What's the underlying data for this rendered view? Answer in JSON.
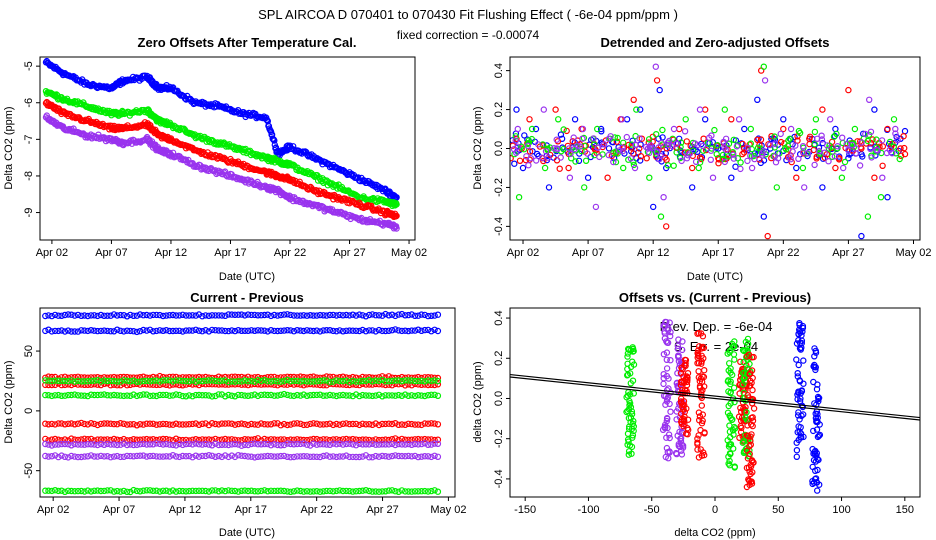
{
  "header": {
    "title": "SPL   AIRCOA D   070401 to 070430   Fit Flushing Effect ( -6e-04 ppm/ppm )",
    "subtitle": "fixed correction = -0.00074"
  },
  "colors": {
    "blue": "#0000ff",
    "red": "#ff0000",
    "green": "#00ee00",
    "purple": "#9933ee",
    "black": "#000000"
  },
  "chart_data": [
    {
      "id": "p1",
      "type": "scatter",
      "title": "Zero Offsets After Temperature Cal.",
      "xlabel": "Date (UTC)",
      "ylabel": "Delta CO2 (ppm)",
      "xlim": [
        0,
        31.5
      ],
      "ylim": [
        -9.75,
        -4.75
      ],
      "xticks": [
        1,
        6,
        11,
        16,
        21,
        26,
        31
      ],
      "xtick_labels": [
        "Apr 02",
        "Apr 07",
        "Apr 12",
        "Apr 17",
        "Apr 22",
        "Apr 27",
        "May 02"
      ],
      "yticks": [
        -9,
        -8,
        -7,
        -6,
        -5
      ],
      "ytick_labels": [
        "-9",
        "-8",
        "-7",
        "-6",
        "-5"
      ],
      "series": [
        {
          "name": "blue",
          "color": "#0000ff",
          "x": [
            0.5,
            2,
            4,
            6,
            7,
            9,
            10,
            11,
            13,
            15,
            17,
            19,
            20,
            21,
            23,
            25,
            27,
            29,
            30
          ],
          "y": [
            -4.9,
            -5.2,
            -5.5,
            -5.6,
            -5.4,
            -5.3,
            -5.6,
            -5.6,
            -6.0,
            -6.1,
            -6.3,
            -6.4,
            -7.4,
            -7.2,
            -7.5,
            -7.8,
            -8.1,
            -8.4,
            -8.6
          ]
        },
        {
          "name": "green",
          "color": "#00ee00",
          "x": [
            0.5,
            2,
            4,
            6,
            7,
            9,
            10,
            11,
            13,
            15,
            17,
            19,
            20,
            21,
            23,
            25,
            27,
            29,
            30
          ],
          "y": [
            -5.7,
            -5.9,
            -6.1,
            -6.3,
            -6.3,
            -6.2,
            -6.5,
            -6.6,
            -6.9,
            -7.1,
            -7.3,
            -7.5,
            -7.6,
            -7.7,
            -8.0,
            -8.3,
            -8.6,
            -8.7,
            -8.8
          ]
        },
        {
          "name": "red",
          "color": "#ff0000",
          "x": [
            0.5,
            2,
            4,
            6,
            7,
            9,
            10,
            11,
            13,
            15,
            17,
            19,
            20,
            21,
            23,
            25,
            27,
            29,
            30
          ],
          "y": [
            -6.0,
            -6.3,
            -6.5,
            -6.7,
            -6.7,
            -6.6,
            -6.9,
            -7.0,
            -7.3,
            -7.5,
            -7.7,
            -7.9,
            -8.0,
            -8.1,
            -8.4,
            -8.6,
            -8.8,
            -9.0,
            -9.1
          ]
        },
        {
          "name": "purple",
          "color": "#9933ee",
          "x": [
            0.5,
            2,
            4,
            6,
            7,
            9,
            10,
            11,
            13,
            15,
            17,
            19,
            20,
            21,
            23,
            25,
            27,
            29,
            30
          ],
          "y": [
            -6.4,
            -6.7,
            -6.9,
            -7.0,
            -7.1,
            -7.0,
            -7.3,
            -7.4,
            -7.7,
            -7.9,
            -8.1,
            -8.3,
            -8.4,
            -8.6,
            -8.8,
            -9.0,
            -9.2,
            -9.3,
            -9.4
          ]
        }
      ]
    },
    {
      "id": "p2",
      "type": "scatter",
      "title": "Detrended and Zero-adjusted Offsets",
      "xlabel": "Date (UTC)",
      "ylabel": "Delta CO2 (ppm)",
      "xlim": [
        0,
        31.5
      ],
      "ylim": [
        -0.47,
        0.47
      ],
      "xticks": [
        1,
        6,
        11,
        16,
        21,
        26,
        31
      ],
      "xtick_labels": [
        "Apr 02",
        "Apr 07",
        "Apr 12",
        "Apr 17",
        "Apr 22",
        "Apr 27",
        "May 02"
      ],
      "yticks": [
        -0.4,
        -0.2,
        0.0,
        0.2,
        0.4
      ],
      "ytick_labels": [
        "-0.4",
        "-0.2",
        "0.0",
        "0.2",
        "0.4"
      ],
      "series": [
        {
          "name": "blue",
          "color": "#0000ff",
          "x": [
            0.5,
            1,
            2,
            3,
            4,
            5,
            6,
            7,
            8,
            9,
            10,
            11,
            11.5,
            12,
            13,
            14,
            15,
            16,
            17,
            18,
            19,
            19.5,
            20,
            21,
            22,
            23,
            24,
            25,
            26,
            27,
            28,
            29,
            30
          ],
          "y": [
            0.2,
            -0.1,
            0.1,
            -0.2,
            0.05,
            0.15,
            -0.15,
            0.1,
            -0.05,
            0.15,
            0.2,
            -0.3,
            0.3,
            -0.1,
            0.05,
            -0.2,
            0.15,
            0.0,
            -0.15,
            0.1,
            0.25,
            -0.35,
            0.0,
            0.15,
            -0.1,
            0.05,
            -0.2,
            0.1,
            -0.05,
            -0.45,
            0.2,
            -0.25,
            0.05
          ]
        },
        {
          "name": "red",
          "color": "#ff0000",
          "x": [
            0.5,
            1.5,
            2.5,
            3.5,
            4.5,
            5.5,
            6.5,
            7.5,
            8.5,
            9.5,
            10.5,
            11.3,
            12,
            13,
            14,
            15,
            16,
            17,
            18,
            19.3,
            19.8,
            21,
            22,
            23,
            24,
            25,
            26,
            27,
            28,
            29,
            30
          ],
          "y": [
            0.05,
            0.15,
            -0.05,
            0.2,
            -0.1,
            0.1,
            0.0,
            -0.15,
            0.15,
            0.25,
            -0.05,
            0.35,
            -0.4,
            0.1,
            -0.1,
            0.2,
            -0.05,
            0.15,
            0.0,
            0.4,
            -0.45,
            0.1,
            -0.15,
            0.05,
            0.2,
            -0.1,
            0.3,
            0.0,
            -0.15,
            0.1,
            0.0
          ]
        },
        {
          "name": "green",
          "color": "#00ee00",
          "x": [
            0.7,
            1.7,
            2.7,
            3.7,
            4.7,
            5.7,
            6.7,
            7.7,
            8.7,
            9.7,
            10.7,
            11.6,
            12.5,
            13.5,
            14.5,
            15.5,
            16.5,
            17.5,
            18.5,
            19.5,
            20.5,
            21.5,
            22.5,
            23.5,
            24.5,
            25.5,
            26.5,
            27.5,
            28.5,
            29.5
          ],
          "y": [
            -0.25,
            0.1,
            -0.1,
            0.15,
            -0.05,
            -0.2,
            0.1,
            0.05,
            -0.1,
            0.2,
            -0.15,
            -0.35,
            0.05,
            0.15,
            -0.1,
            0.0,
            0.2,
            -0.05,
            0.1,
            0.42,
            -0.2,
            0.05,
            -0.1,
            0.15,
            0.0,
            -0.15,
            0.1,
            -0.35,
            -0.25,
            0.15
          ]
        },
        {
          "name": "purple",
          "color": "#9933ee",
          "x": [
            0.6,
            1.6,
            2.6,
            3.6,
            4.6,
            5.6,
            6.6,
            7.6,
            8.6,
            9.6,
            10.6,
            11.2,
            11.8,
            12.6,
            13.6,
            14.6,
            15.6,
            16.6,
            17.6,
            18.6,
            19.6,
            20.6,
            21.6,
            22.6,
            23.6,
            24.6,
            25.6,
            26.6,
            27.6,
            28.6,
            29.6
          ],
          "y": [
            0.1,
            -0.05,
            0.2,
            0.0,
            -0.15,
            0.1,
            -0.3,
            0.05,
            0.15,
            -0.1,
            0.0,
            0.42,
            -0.25,
            0.1,
            -0.05,
            0.2,
            -0.15,
            0.05,
            0.15,
            -0.1,
            0.35,
            -0.05,
            0.1,
            -0.2,
            0.05,
            0.15,
            -0.1,
            0.0,
            0.25,
            -0.15,
            0.1
          ]
        }
      ]
    },
    {
      "id": "p3",
      "type": "scatter",
      "title": "Current - Previous",
      "xlabel": "Date (UTC)",
      "ylabel": "Delta CO2 (ppm)",
      "xlim": [
        0,
        31.5
      ],
      "ylim": [
        -72,
        86
      ],
      "xticks": [
        1,
        6,
        11,
        16,
        21,
        26,
        31
      ],
      "xtick_labels": [
        "Apr 02",
        "Apr 07",
        "Apr 12",
        "Apr 17",
        "Apr 22",
        "Apr 27",
        "May 02"
      ],
      "yticks": [
        -50,
        0,
        50
      ],
      "ytick_labels": [
        "-50",
        "0",
        "50"
      ],
      "series": [
        {
          "name": "blue",
          "color": "#0000ff",
          "levels": [
            80,
            67
          ],
          "xstart": 0.4,
          "xend": 30.2
        },
        {
          "name": "red",
          "color": "#ff0000",
          "levels": [
            28,
            22,
            -11,
            -24
          ],
          "xstart": 0.4,
          "xend": 30.2
        },
        {
          "name": "green",
          "color": "#00ee00",
          "levels": [
            25,
            13,
            -67
          ],
          "xstart": 0.4,
          "xend": 30.2
        },
        {
          "name": "purple",
          "color": "#9933ee",
          "levels": [
            -28,
            -38
          ],
          "xstart": 0.4,
          "xend": 30.2
        }
      ]
    },
    {
      "id": "p4",
      "type": "scatter",
      "title": "Offsets vs. (Current - Previous)",
      "xlabel": "delta CO2 (ppm)",
      "ylabel": "delta CO2 (ppm)",
      "xlim": [
        -162,
        162
      ],
      "ylim": [
        -0.49,
        0.45
      ],
      "xticks": [
        -150,
        -100,
        -50,
        0,
        50,
        100,
        150
      ],
      "xtick_labels": [
        "-150",
        "-100",
        "-50",
        "0",
        "50",
        "100",
        "150"
      ],
      "yticks": [
        -0.4,
        -0.2,
        0.0,
        0.2,
        0.4
      ],
      "ytick_labels": [
        "-0.4",
        "-0.2",
        "0.0",
        "0.2",
        "0.4"
      ],
      "annotations": [
        "Prev. Dep. =  -6e-04",
        "S. Err. =  2e-04"
      ],
      "fit_lines": [
        {
          "slope": -0.00066,
          "intercept": 0.0
        },
        {
          "slope": -0.00066,
          "intercept": 0.012
        }
      ],
      "columns": [
        {
          "x": -67,
          "color": "#00ee00",
          "min": -0.28,
          "max": 0.26
        },
        {
          "x": -38,
          "color": "#9933ee",
          "min": -0.3,
          "max": 0.4
        },
        {
          "x": -28,
          "color": "#9933ee",
          "min": -0.28,
          "max": 0.3
        },
        {
          "x": -24,
          "color": "#ff0000",
          "min": -0.2,
          "max": 0.22
        },
        {
          "x": -11,
          "color": "#ff0000",
          "min": -0.3,
          "max": 0.35
        },
        {
          "x": 13,
          "color": "#00ee00",
          "min": -0.35,
          "max": 0.3
        },
        {
          "x": 22,
          "color": "#ff0000",
          "min": -0.22,
          "max": 0.2
        },
        {
          "x": 25,
          "color": "#00ee00",
          "min": -0.3,
          "max": 0.3
        },
        {
          "x": 28,
          "color": "#ff0000",
          "min": -0.45,
          "max": 0.25
        },
        {
          "x": 67,
          "color": "#0000ff",
          "min": -0.3,
          "max": 0.38
        },
        {
          "x": 80,
          "color": "#0000ff",
          "min": -0.46,
          "max": 0.25
        }
      ]
    }
  ]
}
